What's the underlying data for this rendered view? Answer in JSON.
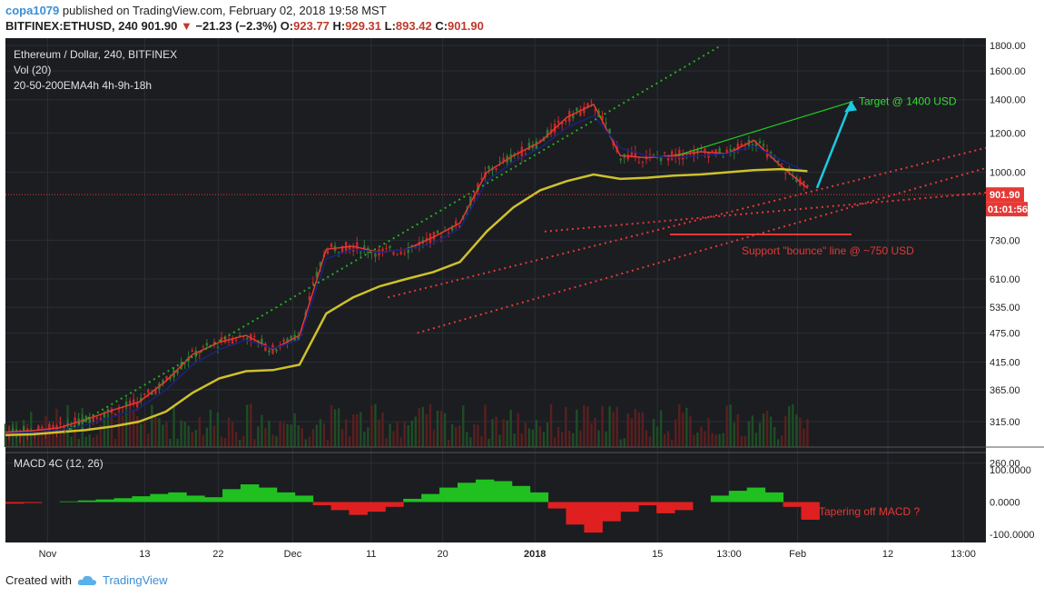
{
  "header": {
    "author": "copa1079",
    "published_text": "published on TradingView.com, February 02, 2018 19:58 MST",
    "symbol": "BITFINEX:ETHUSD, 240",
    "last": "901.90",
    "change_arrow": "▼",
    "change": "−21.23 (−2.3%)",
    "open_label": "O:",
    "open": "923.77",
    "high_label": "H:",
    "high": "929.31",
    "low_label": "L:",
    "low": "893.42",
    "close_label": "C:",
    "close": "901.90"
  },
  "footer": {
    "created_with": "Created with",
    "brand": "TradingView",
    "logo_icon": "tradingview-cloud-icon"
  },
  "colors": {
    "green_candle": "#2e7d32",
    "red_candle": "#c62828",
    "ema20": "#e53935",
    "ema50": "#1a237e",
    "ema200": "#cfc12a",
    "trend_dotted_green": "#22b022",
    "trend_dotted_red": "#e53935",
    "target_arrow": "#1ec8e0",
    "macd_pos": "#20c020",
    "macd_neg": "#e02020",
    "vol_ma": "#f0a040"
  },
  "chart_data": [
    {
      "type": "candlestick",
      "pane": "price",
      "title": "Ethereum / Dollar, 240, BITFINEX",
      "indicators": [
        "Vol (20)",
        "20-50-200EMA4h 4h-9h-18h"
      ],
      "scale": "log",
      "ylim": [
        280,
        1800
      ],
      "y_tick_labels": [
        "1800.00",
        "1600.00",
        "1400.00",
        "1200.00",
        "1000.00",
        "901.90",
        "730.00",
        "610.00",
        "535.00",
        "475.00",
        "415.00",
        "365.00",
        "315.00",
        "260.00"
      ],
      "y_ticks": [
        1800,
        1600,
        1400,
        1200,
        1000,
        730,
        610,
        535,
        475,
        415,
        365,
        315,
        260
      ],
      "last_price_label": "901.90",
      "last_price": 901.9,
      "countdown_label": "01:01:56",
      "x_tick_labels": [
        "Nov",
        "13",
        "22",
        "Dec",
        "11",
        "20",
        "2018",
        "15",
        "13:00",
        "Feb",
        "12",
        "13:00"
      ],
      "series": [
        {
          "name": "EMA 20",
          "values": [
            300,
            302,
            306,
            318,
            332,
            345,
            380,
            430,
            455,
            470,
            440,
            470,
            700,
            710,
            690,
            700,
            740,
            790,
            1000,
            1080,
            1150,
            1290,
            1370,
            1080,
            1070,
            1080,
            1100,
            1090,
            1160,
            1030,
            930
          ]
        },
        {
          "name": "EMA 50",
          "values": [
            298,
            300,
            303,
            310,
            322,
            335,
            365,
            410,
            440,
            460,
            442,
            460,
            670,
            700,
            690,
            700,
            720,
            770,
            960,
            1050,
            1120,
            1230,
            1300,
            1120,
            1080,
            1070,
            1080,
            1090,
            1130,
            1060,
            1000
          ]
        },
        {
          "name": "EMA 200",
          "values": [
            296,
            297,
            300,
            303,
            308,
            315,
            330,
            360,
            385,
            398,
            400,
            410,
            520,
            560,
            590,
            610,
            630,
            660,
            760,
            850,
            920,
            960,
            990,
            970,
            975,
            985,
            990,
            1000,
            1010,
            1015,
            1005
          ]
        }
      ],
      "annotations": [
        {
          "text": "Target @ 1400 USD",
          "y": 1390
        },
        {
          "text": "Support \"bounce\" line @ ~750 USD",
          "y": 750
        }
      ],
      "grid": true
    },
    {
      "type": "bar",
      "pane": "macd",
      "title": "MACD 4C (12, 26)",
      "y_tick_labels": [
        "100.0000",
        "0.0000",
        "-100.0000"
      ],
      "ylim": [
        -130,
        130
      ],
      "values": [
        -5,
        -3,
        0,
        2,
        5,
        8,
        12,
        18,
        25,
        30,
        20,
        15,
        40,
        55,
        45,
        30,
        20,
        -10,
        -25,
        -40,
        -30,
        -15,
        10,
        25,
        45,
        60,
        70,
        65,
        50,
        30,
        -20,
        -70,
        -95,
        -60,
        -30,
        -10,
        -35,
        -25,
        0,
        20,
        35,
        45,
        30,
        -15,
        -55
      ],
      "annotations": [
        {
          "text": "Tapering off MACD ?"
        }
      ]
    }
  ]
}
